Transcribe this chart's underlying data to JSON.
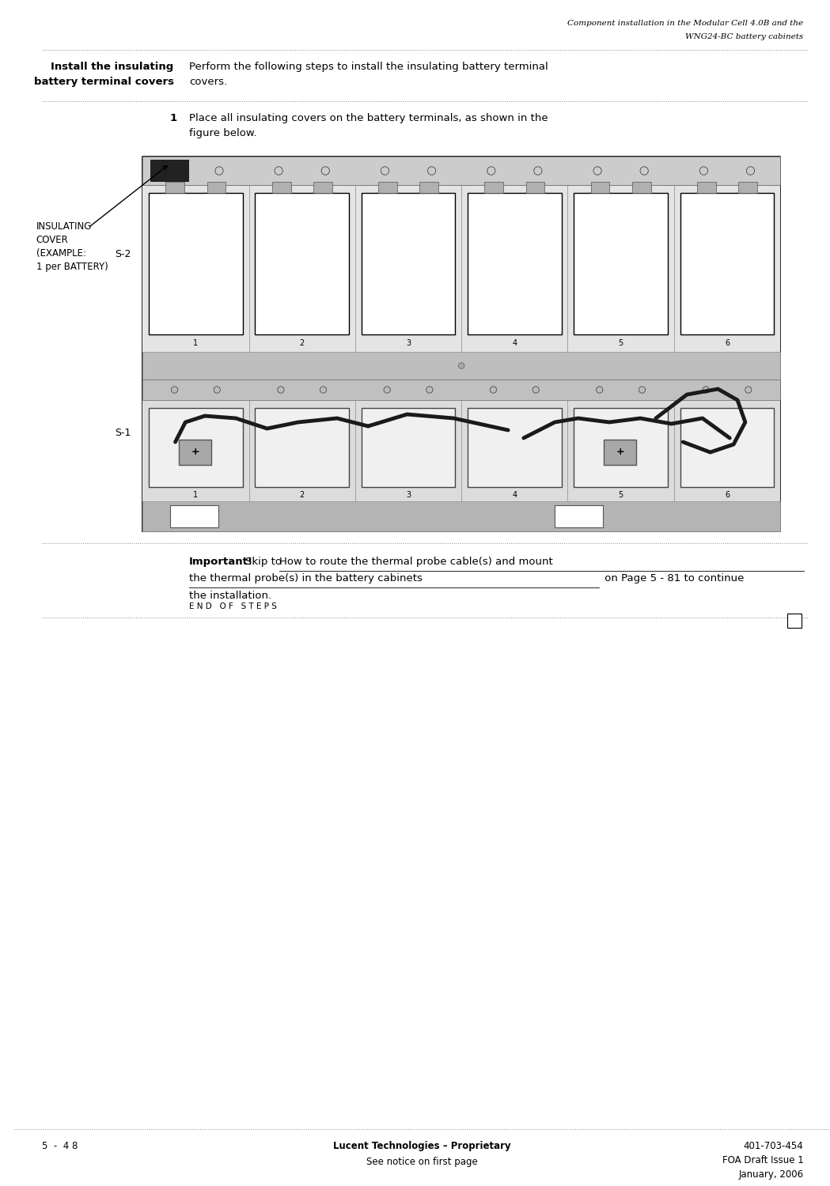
{
  "page_width": 10.49,
  "page_height": 15.0,
  "bg_color": "#ffffff",
  "header_title_line1": "Component installation in the Modular Cell 4.0B and the",
  "header_title_line2": "WNG24-BC battery cabinets",
  "section_heading_line1": "Install the insulating",
  "section_heading_line2": "battery terminal covers",
  "section_body_line1": "Perform the following steps to install the insulating battery terminal",
  "section_body_line2": "covers.",
  "step_number": "1",
  "step_text_line1": "Place all insulating covers on the battery terminals, as shown in the",
  "step_text_line2": "figure below.",
  "label_insulating": "INSULATING\nCOVER\n(EXAMPLE:\n1 per BATTERY)",
  "label_s2": "S-2",
  "label_s1": "S-1",
  "important_bold": "Important!",
  "important_text_line1": "Skip to How to route the thermal probe cable(s) and mount",
  "important_text_line2": "the thermal probe(s) in the battery cabinets on Page 5 - 81 to continue",
  "important_text_line3": "the installation.",
  "end_of_steps": "E N D   O F   S T E P S",
  "footer_left": "5  -  4 8",
  "footer_center_bold": "Lucent Technologies – Proprietary",
  "footer_center_normal": "See notice on first page",
  "footer_right_line1": "401-703-454",
  "footer_right_line2": "FOA Draft Issue 1",
  "footer_right_line3": "January, 2006",
  "dotted_line_color": "#888888",
  "black": "#000000",
  "white": "#ffffff",
  "cable_color": "#1a1a1a",
  "insulating_cover_color": "#222222"
}
